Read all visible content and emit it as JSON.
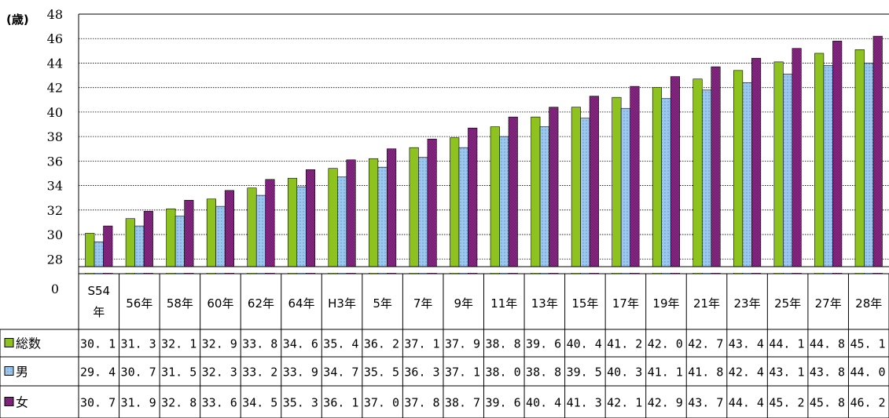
{
  "chart_data": {
    "type": "bar",
    "unit_label": "(歳)",
    "y_ticks": [
      "48",
      "46",
      "44",
      "42",
      "40",
      "38",
      "36",
      "34",
      "32",
      "30",
      "28"
    ],
    "y_zero_label": "0",
    "ylim": [
      26.8,
      48
    ],
    "axis_break": true,
    "grid": true,
    "categories": [
      "S54\n年",
      "56年",
      "58年",
      "60年",
      "62年",
      "64年",
      "H3年",
      "5年",
      "7年",
      "9年",
      "11年",
      "13年",
      "15年",
      "17年",
      "19年",
      "21年",
      "23年",
      "25年",
      "27年",
      "28年"
    ],
    "series": [
      {
        "name": "総数",
        "color": "#8ec31f",
        "values": [
          30.1,
          31.3,
          32.1,
          32.9,
          33.8,
          34.6,
          35.4,
          36.2,
          37.1,
          37.9,
          38.8,
          39.6,
          40.4,
          41.2,
          42.0,
          42.7,
          43.4,
          44.1,
          44.8,
          45.1
        ],
        "labels": [
          "30. 1",
          "31. 3",
          "32. 1",
          "32. 9",
          "33. 8",
          "34. 6",
          "35. 4",
          "36. 2",
          "37. 1",
          "37. 9",
          "38. 8",
          "39. 6",
          "40. 4",
          "41. 2",
          "42. 0",
          "42. 7",
          "43. 4",
          "44. 1",
          "44. 8",
          "45. 1"
        ]
      },
      {
        "name": "男",
        "color": "#9cc8f0",
        "values": [
          29.4,
          30.7,
          31.5,
          32.3,
          33.2,
          33.9,
          34.7,
          35.5,
          36.3,
          37.1,
          38.0,
          38.8,
          39.5,
          40.3,
          41.1,
          41.8,
          42.4,
          43.1,
          43.8,
          44.0
        ],
        "labels": [
          "29. 4",
          "30. 7",
          "31. 5",
          "32. 3",
          "33. 2",
          "33. 9",
          "34. 7",
          "35. 5",
          "36. 3",
          "37. 1",
          "38. 0",
          "38. 8",
          "39. 5",
          "40. 3",
          "41. 1",
          "41. 8",
          "42. 4",
          "43. 1",
          "43. 8",
          "44. 0"
        ]
      },
      {
        "name": "女",
        "color": "#9c2596",
        "values": [
          30.7,
          31.9,
          32.8,
          33.6,
          34.5,
          35.3,
          36.1,
          37.0,
          37.8,
          38.7,
          39.6,
          40.4,
          41.3,
          42.1,
          42.9,
          43.7,
          44.4,
          45.2,
          45.8,
          46.2
        ],
        "labels": [
          "30. 7",
          "31. 9",
          "32. 8",
          "33. 6",
          "34. 5",
          "35. 3",
          "36. 1",
          "37. 0",
          "37. 8",
          "38. 7",
          "39. 6",
          "40. 4",
          "41. 3",
          "42. 1",
          "42. 9",
          "43. 7",
          "44. 4",
          "45. 2",
          "45. 8",
          "46. 2"
        ]
      }
    ]
  }
}
